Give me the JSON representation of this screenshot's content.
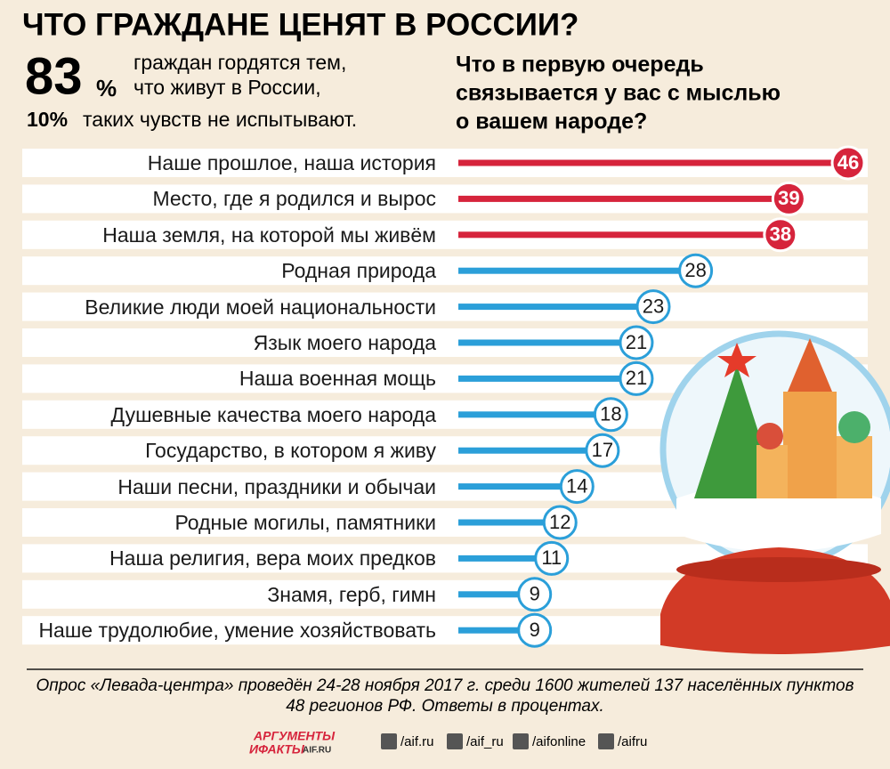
{
  "chart_data": {
    "type": "bar",
    "title": "ЧТО ГРАЖДАНЕ ЦЕНЯТ В РОССИИ?",
    "intro": {
      "big": "83",
      "big_unit": "%",
      "lines": [
        "граждан гордятся тем,",
        "что живут в России,"
      ],
      "second_value": "10%",
      "second_text": "таких чувств не испытывают."
    },
    "subtitle": [
      "Что в первую очередь",
      "связывается у вас с мыслью",
      "о вашем народе?"
    ],
    "categories": [
      "Наше прошлое, наша история",
      "Место, где я родился и вырос",
      "Наша земля, на которой мы живём",
      "Родная природа",
      "Великие люди моей национальности",
      "Язык моего народа",
      "Наша военная мощь",
      "Душевные качества моего народа",
      "Государство, в котором я живу",
      "Наши песни, праздники и обычаи",
      "Родные могилы, памятники",
      "Наша религия, вера моих предков",
      "Знамя, герб, гимн",
      "Наше трудолюбие, умение хозяйствовать"
    ],
    "values": [
      46,
      39,
      38,
      28,
      23,
      21,
      21,
      18,
      17,
      14,
      12,
      11,
      9,
      9
    ],
    "colors": [
      "#d6243c",
      "#d6243c",
      "#d6243c",
      "#2b9fd9",
      "#2b9fd9",
      "#2b9fd9",
      "#2b9fd9",
      "#2b9fd9",
      "#2b9fd9",
      "#2b9fd9",
      "#2b9fd9",
      "#2b9fd9",
      "#2b9fd9",
      "#2b9fd9"
    ],
    "note": [
      "Опрос «Левада-центра» проведён 24-28 ноября 2017 г. среди 1600 жителей 137 населённых пунктов",
      "48 регионов РФ. Ответы в процентах."
    ],
    "logo": [
      "АРГУМЕНТЫ",
      "ИФАКТЫ",
      "AIF.RU"
    ],
    "social": [
      "/aif.ru",
      "/aif_ru",
      "/aifonline",
      "/aifru"
    ]
  }
}
